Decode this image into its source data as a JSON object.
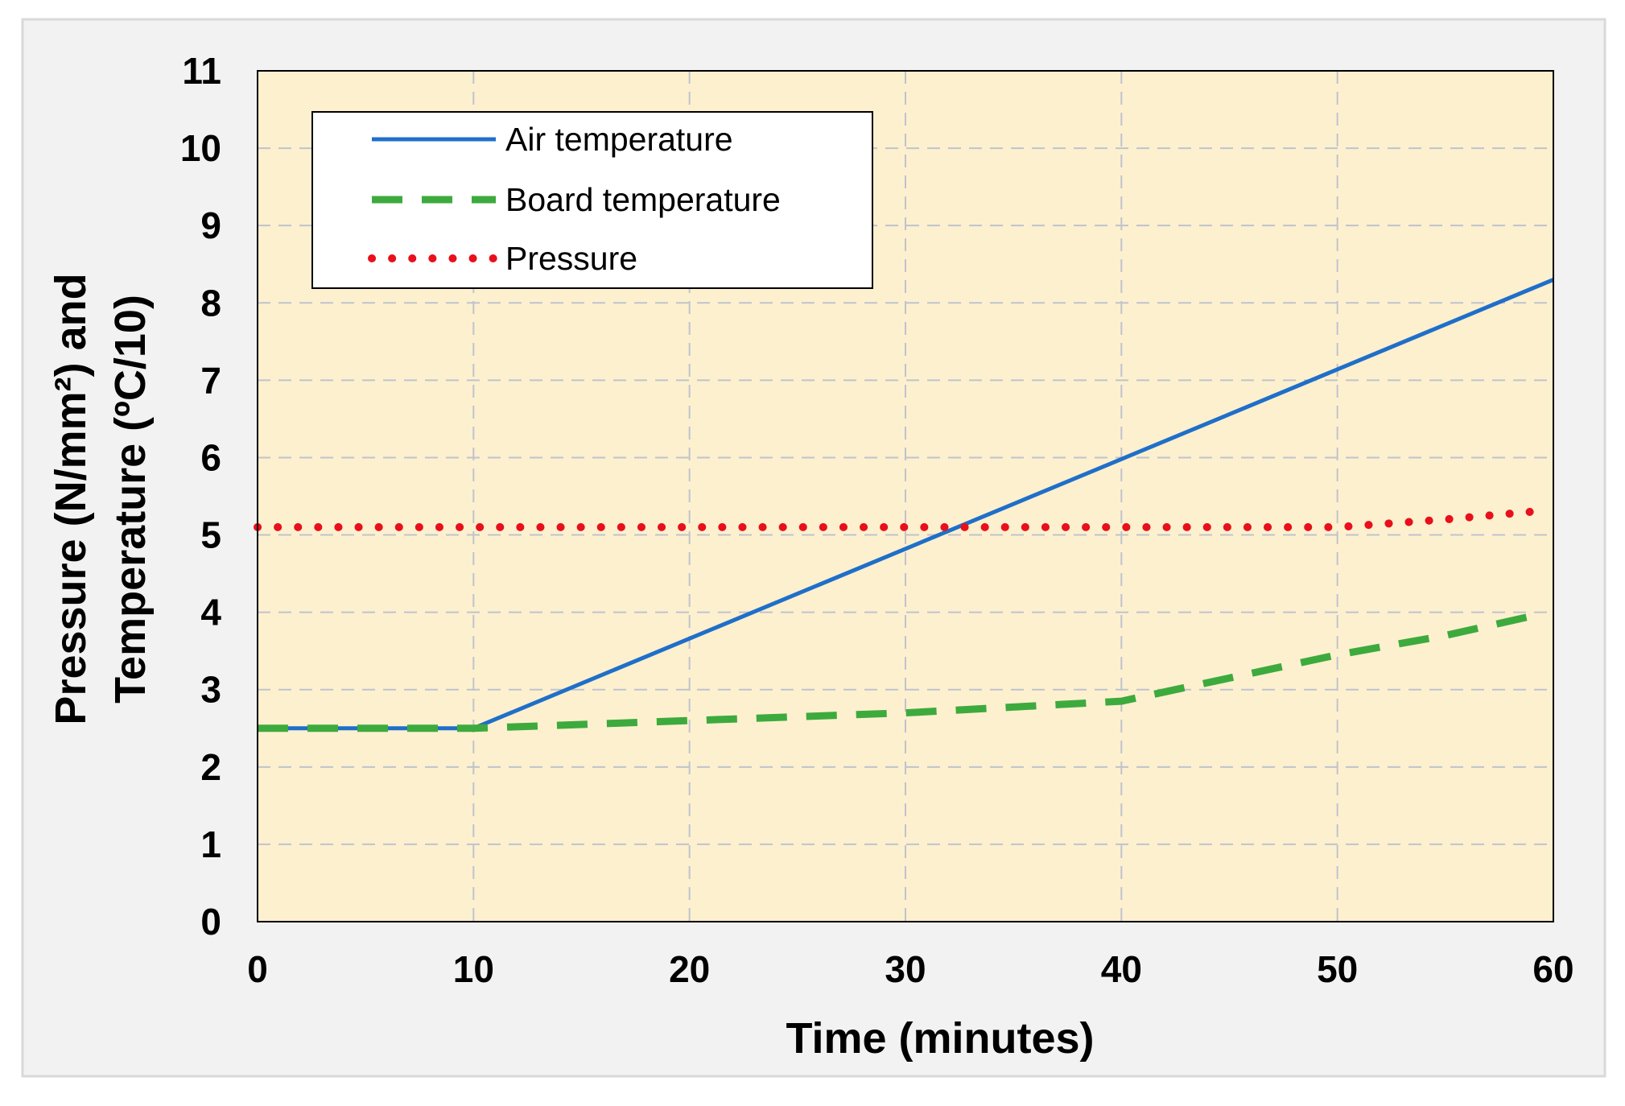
{
  "chart_data": {
    "type": "line",
    "title": "",
    "xlabel": "Time (minutes)",
    "ylabel_line1": "Pressure (N/mm²) and",
    "ylabel_line2": "Temperature (ºC/10)",
    "xlim": [
      0,
      60
    ],
    "ylim": [
      0,
      11
    ],
    "xticks": [
      0,
      10,
      20,
      30,
      40,
      50,
      60
    ],
    "yticks": [
      0,
      1,
      2,
      3,
      4,
      5,
      6,
      7,
      8,
      9,
      10,
      11
    ],
    "grid": true,
    "legend_position": "top-left",
    "colors": {
      "plot_background": "#FDF0CF",
      "outer_background": "#F2F2F2",
      "grid": "#BFC3CC"
    },
    "series": [
      {
        "name": "Air temperature",
        "style": "solid",
        "color": "#1F6FC9",
        "x": [
          0,
          10,
          60
        ],
        "y": [
          2.5,
          2.5,
          8.3
        ]
      },
      {
        "name": "Board temperature",
        "style": "dashed",
        "color": "#3DAA3D",
        "x": [
          0,
          10,
          20,
          30,
          40,
          45,
          50,
          55,
          59
        ],
        "y": [
          2.5,
          2.5,
          2.6,
          2.7,
          2.85,
          3.15,
          3.45,
          3.7,
          3.95
        ]
      },
      {
        "name": "Pressure",
        "style": "dotted",
        "color": "#E8101A",
        "x": [
          0,
          10,
          20,
          30,
          40,
          50,
          55,
          59
        ],
        "y": [
          5.1,
          5.1,
          5.1,
          5.1,
          5.1,
          5.1,
          5.2,
          5.3
        ]
      }
    ]
  }
}
